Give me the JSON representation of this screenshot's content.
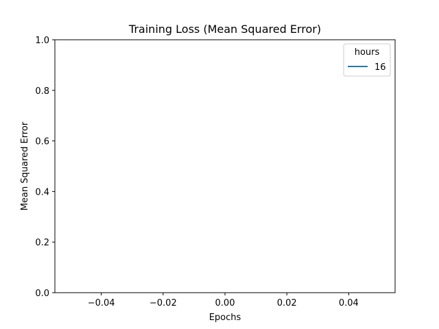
{
  "chart_data": {
    "type": "line",
    "title": "Training Loss (Mean Squared Error)",
    "xlabel": "Epochs",
    "ylabel": "Mean Squared Error",
    "xlim": [
      -0.055,
      0.055
    ],
    "ylim": [
      0.0,
      1.0
    ],
    "x_ticks": [
      -0.04,
      -0.02,
      0.0,
      0.02,
      0.04
    ],
    "x_tick_labels": [
      "−0.04",
      "−0.02",
      "0.00",
      "0.02",
      "0.04"
    ],
    "y_ticks": [
      0.0,
      0.2,
      0.4,
      0.6,
      0.8,
      1.0
    ],
    "y_tick_labels": [
      "0.0",
      "0.2",
      "0.4",
      "0.6",
      "0.8",
      "1.0"
    ],
    "grid": false,
    "legend": {
      "title": "hours",
      "placement": "top-right"
    },
    "series": [
      {
        "name": "16",
        "color": "#1f77b4",
        "x": [],
        "y": []
      }
    ]
  }
}
